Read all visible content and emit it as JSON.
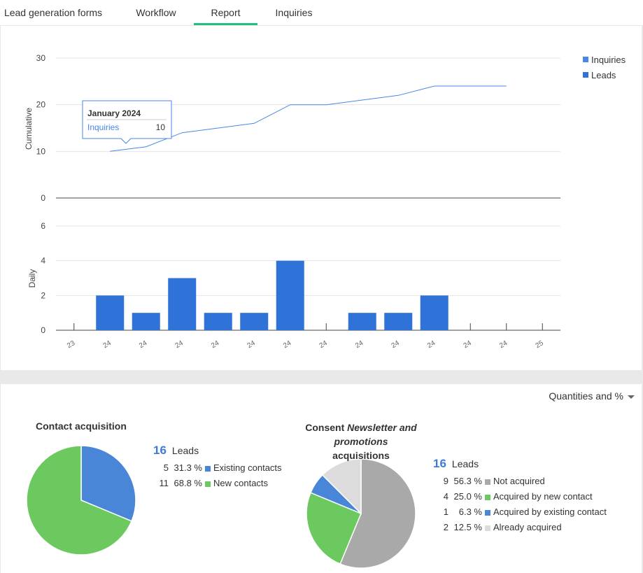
{
  "tabs": [
    {
      "label": "Lead generation forms"
    },
    {
      "label": "Workflow"
    },
    {
      "label": "Report"
    },
    {
      "label": "Inquiries"
    }
  ],
  "chart_data": [
    {
      "type": "line",
      "ylabel": "Cumulative",
      "yticks": [
        "30",
        "20",
        "10",
        "0"
      ],
      "ylim": [
        0,
        30
      ],
      "series": [
        {
          "name": "Inquiries",
          "color": "#4a86e8",
          "values": [
            10,
            11,
            14,
            15,
            16,
            20,
            20,
            21,
            22,
            24,
            24,
            24
          ]
        }
      ],
      "legend": [
        {
          "name": "Inquiries",
          "color": "#4a86e8"
        },
        {
          "name": "Leads",
          "color": "#2f73d8"
        }
      ],
      "tooltip": {
        "title": "January 2024",
        "series": "Inquiries",
        "value": "10"
      }
    },
    {
      "type": "bar",
      "ylabel": "Daily",
      "yticks": [
        "6",
        "4",
        "2",
        "0"
      ],
      "ylim": [
        0,
        6
      ],
      "categories": [
        "2023",
        "2024",
        "2024",
        "2024",
        "2024",
        "2024",
        "2024",
        "2024",
        "2024",
        "2024",
        "2024",
        "2024",
        "2024",
        "2025"
      ],
      "x_tick_labels": [
        "23",
        "24",
        "24",
        "24",
        "24",
        "24",
        "24",
        "24",
        "24",
        "24",
        "24",
        "24",
        "24",
        "25"
      ],
      "values": [
        0,
        2,
        1,
        3,
        1,
        1,
        4,
        0,
        1,
        1,
        2,
        0,
        0,
        0
      ],
      "color": "#2f73d8"
    },
    {
      "type": "pie",
      "title": "Contact acquisition",
      "total": "16",
      "total_label": "Leads",
      "slices": [
        {
          "count": "5",
          "pct": "31.3 %",
          "label": "Existing contacts",
          "value": 5,
          "color": "#4a86d8"
        },
        {
          "count": "11",
          "pct": "68.8 %",
          "label": "New contacts",
          "value": 11,
          "color": "#6cc95f"
        }
      ]
    },
    {
      "type": "pie",
      "title_prefix": "Consent ",
      "title_em": "Newsletter and promotions",
      "title_suffix": " acquisitions",
      "total": "16",
      "total_label": "Leads",
      "slices": [
        {
          "count": "9",
          "pct": "56.3 %",
          "label": "Not acquired",
          "value": 9,
          "color": "#a9a9a9"
        },
        {
          "count": "4",
          "pct": "25.0 %",
          "label": "Acquired by new contact",
          "value": 4,
          "color": "#6cc95f"
        },
        {
          "count": "1",
          "pct": "6.3 %",
          "label": "Acquired by existing contact",
          "value": 1,
          "color": "#4a86d8"
        },
        {
          "count": "2",
          "pct": "12.5 %",
          "label": "Already acquired",
          "value": 2,
          "color": "#dcdcdc"
        }
      ]
    }
  ],
  "dropdown": {
    "label": "Quantities and %"
  }
}
